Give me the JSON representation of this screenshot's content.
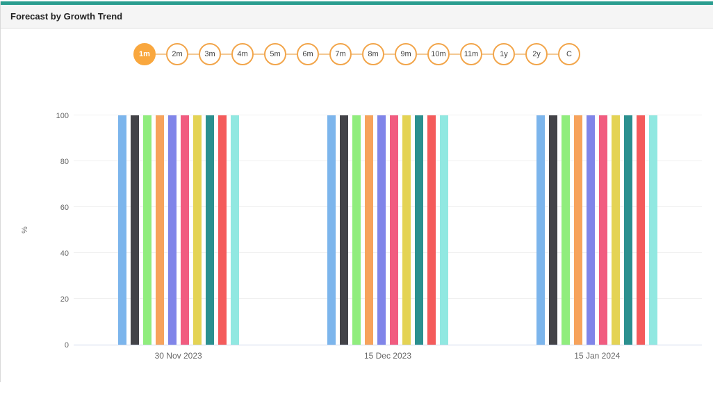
{
  "accent": {
    "top_bar_color": "#2a9d8f",
    "button_border_color": "#f2a54a",
    "button_selected_color": "#f9a73e"
  },
  "panel": {
    "title": "Forecast by Growth Trend"
  },
  "range_buttons": {
    "items": [
      {
        "label": "1m",
        "selected": true
      },
      {
        "label": "2m",
        "selected": false
      },
      {
        "label": "3m",
        "selected": false
      },
      {
        "label": "4m",
        "selected": false
      },
      {
        "label": "5m",
        "selected": false
      },
      {
        "label": "6m",
        "selected": false
      },
      {
        "label": "7m",
        "selected": false
      },
      {
        "label": "8m",
        "selected": false
      },
      {
        "label": "9m",
        "selected": false
      },
      {
        "label": "10m",
        "selected": false
      },
      {
        "label": "11m",
        "selected": false
      },
      {
        "label": "1y",
        "selected": false
      },
      {
        "label": "2y",
        "selected": false
      },
      {
        "label": "C",
        "selected": false
      }
    ]
  },
  "chart_data": {
    "type": "bar",
    "title": "",
    "xlabel": "",
    "ylabel": "%",
    "ylim": [
      0,
      100
    ],
    "yticks": [
      0,
      20,
      40,
      60,
      80,
      100
    ],
    "grid": true,
    "legend_position": "none",
    "categories": [
      "30 Nov 2023",
      "15 Dec 2023",
      "15 Jan 2024"
    ],
    "series": [
      {
        "color": "#7cb5ec",
        "values": [
          100,
          100,
          100
        ]
      },
      {
        "color": "#434348",
        "values": [
          100,
          100,
          100
        ]
      },
      {
        "color": "#90ed7d",
        "values": [
          100,
          100,
          100
        ]
      },
      {
        "color": "#f7a35c",
        "values": [
          100,
          100,
          100
        ]
      },
      {
        "color": "#8085e9",
        "values": [
          100,
          100,
          100
        ]
      },
      {
        "color": "#f15c80",
        "values": [
          100,
          100,
          100
        ]
      },
      {
        "color": "#e4d354",
        "values": [
          100,
          100,
          100
        ]
      },
      {
        "color": "#2b908f",
        "values": [
          100,
          100,
          100
        ]
      },
      {
        "color": "#f45b5b",
        "values": [
          100,
          100,
          100
        ]
      },
      {
        "color": "#91e8e1",
        "values": [
          100,
          100,
          100
        ]
      }
    ]
  }
}
